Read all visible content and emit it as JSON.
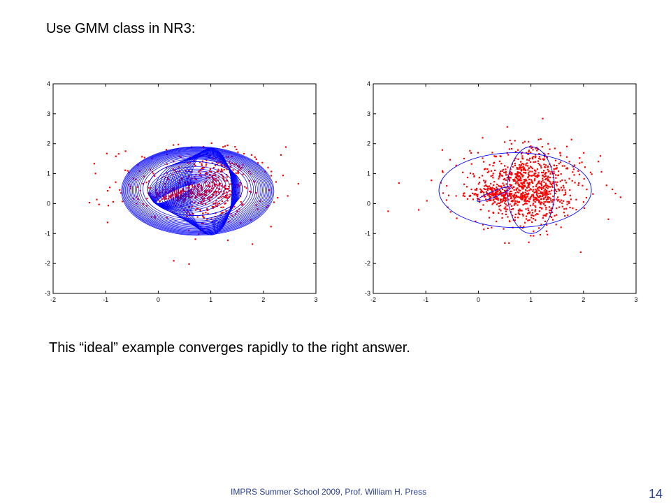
{
  "slide": {
    "heading": "Use GMM class in NR3:",
    "caption": "This “ideal” example converges rapidly to the right answer.",
    "footer": "IMPRS Summer School 2009, Prof. William H. Press",
    "page_number": "14"
  },
  "colors": {
    "points": "#ff0000",
    "ellipses": "#0000ff",
    "axes": "#000000"
  },
  "chart_data": [
    {
      "type": "scatter",
      "title": "",
      "xlabel": "",
      "ylabel": "",
      "xlim": [
        -2,
        3
      ],
      "ylim": [
        -3,
        4
      ],
      "x_ticks": [
        "-2",
        "-1",
        "0",
        "1",
        "2",
        "3"
      ],
      "y_ticks": [
        "4",
        "3",
        "2",
        "1",
        "0",
        "-1",
        "-2",
        "-3"
      ],
      "grid": false,
      "series": [
        {
          "kind": "points",
          "clusters": [
            {
              "center": [
                0.3,
                0.3
              ],
              "spread": [
                0.25,
                0.12
              ],
              "count": 120
            },
            {
              "center": [
                1.05,
                0.5
              ],
              "spread": [
                0.3,
                0.6
              ],
              "count": 320
            },
            {
              "center": [
                0.7,
                0.6
              ],
              "spread": [
                0.8,
                0.65
              ],
              "count": 260
            }
          ]
        },
        {
          "kind": "ellipse-trace",
          "start": [
            0.7,
            0.5,
            0.9,
            0.9
          ],
          "ellipses": [
            {
              "center": [
                0.75,
                0.42
              ],
              "radii": [
                1.45,
                1.48
              ],
              "rot": 0
            },
            {
              "center": [
                0.33,
                0.33
              ],
              "radii": [
                0.4,
                0.12
              ],
              "rot": 25
            },
            {
              "center": [
                1.0,
                0.4
              ],
              "radii": [
                0.4,
                1.45
              ],
              "rot": 0
            }
          ]
        }
      ]
    },
    {
      "type": "scatter",
      "title": "",
      "xlabel": "",
      "ylabel": "",
      "xlim": [
        -2,
        3
      ],
      "ylim": [
        -3,
        4
      ],
      "x_ticks": [
        "-2",
        "-1",
        "0",
        "1",
        "2",
        "3"
      ],
      "y_ticks": [
        "4",
        "3",
        "2",
        "1",
        "0",
        "-1",
        "-2",
        "-3"
      ],
      "grid": false,
      "series": [
        {
          "kind": "points",
          "clusters": [
            {
              "center": [
                0.3,
                0.3
              ],
              "spread": [
                0.25,
                0.12
              ],
              "count": 140
            },
            {
              "center": [
                1.0,
                0.55
              ],
              "spread": [
                0.35,
                0.65
              ],
              "count": 620
            },
            {
              "center": [
                0.8,
                0.6
              ],
              "spread": [
                0.75,
                0.6
              ],
              "count": 330
            }
          ]
        },
        {
          "kind": "ellipse-final",
          "ellipses": [
            {
              "center": [
                0.7,
                0.45
              ],
              "radii": [
                1.45,
                1.25
              ],
              "rot": 0
            },
            {
              "center": [
                0.3,
                0.32
              ],
              "radii": [
                0.35,
                0.1
              ],
              "rot": 22
            },
            {
              "center": [
                1.0,
                0.45
              ],
              "radii": [
                0.45,
                1.45
              ],
              "rot": 0
            }
          ]
        }
      ]
    }
  ]
}
